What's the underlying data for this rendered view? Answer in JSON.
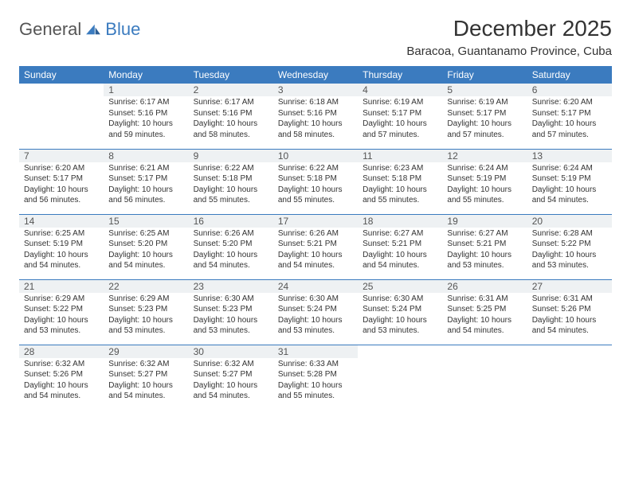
{
  "brand": {
    "name1": "General",
    "name2": "Blue"
  },
  "title": "December 2025",
  "location": "Baracoa, Guantanamo Province, Cuba",
  "day_headers": [
    "Sunday",
    "Monday",
    "Tuesday",
    "Wednesday",
    "Thursday",
    "Friday",
    "Saturday"
  ],
  "colors": {
    "header_bg": "#3b7bbf",
    "header_text": "#ffffff",
    "daynum_bg": "#eef1f3",
    "text": "#333333",
    "rule": "#3b7bbf"
  },
  "weeks": [
    [
      null,
      {
        "n": "1",
        "sunrise": "Sunrise: 6:17 AM",
        "sunset": "Sunset: 5:16 PM",
        "dl1": "Daylight: 10 hours",
        "dl2": "and 59 minutes."
      },
      {
        "n": "2",
        "sunrise": "Sunrise: 6:17 AM",
        "sunset": "Sunset: 5:16 PM",
        "dl1": "Daylight: 10 hours",
        "dl2": "and 58 minutes."
      },
      {
        "n": "3",
        "sunrise": "Sunrise: 6:18 AM",
        "sunset": "Sunset: 5:16 PM",
        "dl1": "Daylight: 10 hours",
        "dl2": "and 58 minutes."
      },
      {
        "n": "4",
        "sunrise": "Sunrise: 6:19 AM",
        "sunset": "Sunset: 5:17 PM",
        "dl1": "Daylight: 10 hours",
        "dl2": "and 57 minutes."
      },
      {
        "n": "5",
        "sunrise": "Sunrise: 6:19 AM",
        "sunset": "Sunset: 5:17 PM",
        "dl1": "Daylight: 10 hours",
        "dl2": "and 57 minutes."
      },
      {
        "n": "6",
        "sunrise": "Sunrise: 6:20 AM",
        "sunset": "Sunset: 5:17 PM",
        "dl1": "Daylight: 10 hours",
        "dl2": "and 57 minutes."
      }
    ],
    [
      {
        "n": "7",
        "sunrise": "Sunrise: 6:20 AM",
        "sunset": "Sunset: 5:17 PM",
        "dl1": "Daylight: 10 hours",
        "dl2": "and 56 minutes."
      },
      {
        "n": "8",
        "sunrise": "Sunrise: 6:21 AM",
        "sunset": "Sunset: 5:17 PM",
        "dl1": "Daylight: 10 hours",
        "dl2": "and 56 minutes."
      },
      {
        "n": "9",
        "sunrise": "Sunrise: 6:22 AM",
        "sunset": "Sunset: 5:18 PM",
        "dl1": "Daylight: 10 hours",
        "dl2": "and 55 minutes."
      },
      {
        "n": "10",
        "sunrise": "Sunrise: 6:22 AM",
        "sunset": "Sunset: 5:18 PM",
        "dl1": "Daylight: 10 hours",
        "dl2": "and 55 minutes."
      },
      {
        "n": "11",
        "sunrise": "Sunrise: 6:23 AM",
        "sunset": "Sunset: 5:18 PM",
        "dl1": "Daylight: 10 hours",
        "dl2": "and 55 minutes."
      },
      {
        "n": "12",
        "sunrise": "Sunrise: 6:24 AM",
        "sunset": "Sunset: 5:19 PM",
        "dl1": "Daylight: 10 hours",
        "dl2": "and 55 minutes."
      },
      {
        "n": "13",
        "sunrise": "Sunrise: 6:24 AM",
        "sunset": "Sunset: 5:19 PM",
        "dl1": "Daylight: 10 hours",
        "dl2": "and 54 minutes."
      }
    ],
    [
      {
        "n": "14",
        "sunrise": "Sunrise: 6:25 AM",
        "sunset": "Sunset: 5:19 PM",
        "dl1": "Daylight: 10 hours",
        "dl2": "and 54 minutes."
      },
      {
        "n": "15",
        "sunrise": "Sunrise: 6:25 AM",
        "sunset": "Sunset: 5:20 PM",
        "dl1": "Daylight: 10 hours",
        "dl2": "and 54 minutes."
      },
      {
        "n": "16",
        "sunrise": "Sunrise: 6:26 AM",
        "sunset": "Sunset: 5:20 PM",
        "dl1": "Daylight: 10 hours",
        "dl2": "and 54 minutes."
      },
      {
        "n": "17",
        "sunrise": "Sunrise: 6:26 AM",
        "sunset": "Sunset: 5:21 PM",
        "dl1": "Daylight: 10 hours",
        "dl2": "and 54 minutes."
      },
      {
        "n": "18",
        "sunrise": "Sunrise: 6:27 AM",
        "sunset": "Sunset: 5:21 PM",
        "dl1": "Daylight: 10 hours",
        "dl2": "and 54 minutes."
      },
      {
        "n": "19",
        "sunrise": "Sunrise: 6:27 AM",
        "sunset": "Sunset: 5:21 PM",
        "dl1": "Daylight: 10 hours",
        "dl2": "and 53 minutes."
      },
      {
        "n": "20",
        "sunrise": "Sunrise: 6:28 AM",
        "sunset": "Sunset: 5:22 PM",
        "dl1": "Daylight: 10 hours",
        "dl2": "and 53 minutes."
      }
    ],
    [
      {
        "n": "21",
        "sunrise": "Sunrise: 6:29 AM",
        "sunset": "Sunset: 5:22 PM",
        "dl1": "Daylight: 10 hours",
        "dl2": "and 53 minutes."
      },
      {
        "n": "22",
        "sunrise": "Sunrise: 6:29 AM",
        "sunset": "Sunset: 5:23 PM",
        "dl1": "Daylight: 10 hours",
        "dl2": "and 53 minutes."
      },
      {
        "n": "23",
        "sunrise": "Sunrise: 6:30 AM",
        "sunset": "Sunset: 5:23 PM",
        "dl1": "Daylight: 10 hours",
        "dl2": "and 53 minutes."
      },
      {
        "n": "24",
        "sunrise": "Sunrise: 6:30 AM",
        "sunset": "Sunset: 5:24 PM",
        "dl1": "Daylight: 10 hours",
        "dl2": "and 53 minutes."
      },
      {
        "n": "25",
        "sunrise": "Sunrise: 6:30 AM",
        "sunset": "Sunset: 5:24 PM",
        "dl1": "Daylight: 10 hours",
        "dl2": "and 53 minutes."
      },
      {
        "n": "26",
        "sunrise": "Sunrise: 6:31 AM",
        "sunset": "Sunset: 5:25 PM",
        "dl1": "Daylight: 10 hours",
        "dl2": "and 54 minutes."
      },
      {
        "n": "27",
        "sunrise": "Sunrise: 6:31 AM",
        "sunset": "Sunset: 5:26 PM",
        "dl1": "Daylight: 10 hours",
        "dl2": "and 54 minutes."
      }
    ],
    [
      {
        "n": "28",
        "sunrise": "Sunrise: 6:32 AM",
        "sunset": "Sunset: 5:26 PM",
        "dl1": "Daylight: 10 hours",
        "dl2": "and 54 minutes."
      },
      {
        "n": "29",
        "sunrise": "Sunrise: 6:32 AM",
        "sunset": "Sunset: 5:27 PM",
        "dl1": "Daylight: 10 hours",
        "dl2": "and 54 minutes."
      },
      {
        "n": "30",
        "sunrise": "Sunrise: 6:32 AM",
        "sunset": "Sunset: 5:27 PM",
        "dl1": "Daylight: 10 hours",
        "dl2": "and 54 minutes."
      },
      {
        "n": "31",
        "sunrise": "Sunrise: 6:33 AM",
        "sunset": "Sunset: 5:28 PM",
        "dl1": "Daylight: 10 hours",
        "dl2": "and 55 minutes."
      },
      null,
      null,
      null
    ]
  ]
}
